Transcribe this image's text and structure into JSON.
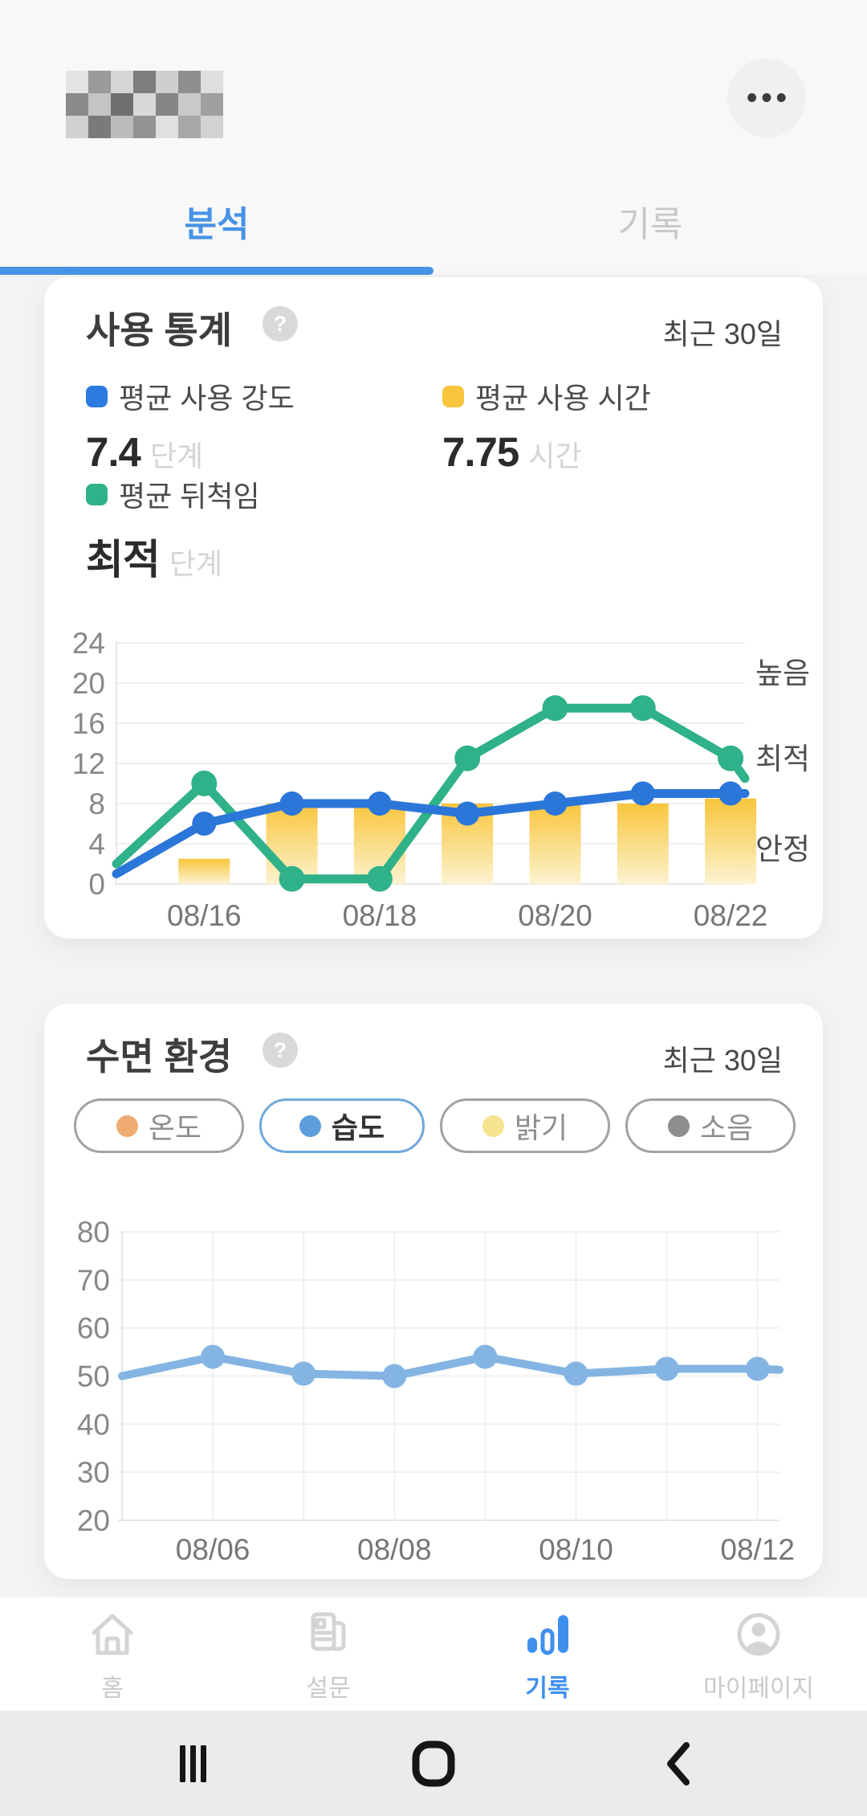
{
  "header": {
    "menu_icon_glyph": "•••"
  },
  "tabs": [
    {
      "label": "분석",
      "active": true
    },
    {
      "label": "기록",
      "active": false
    }
  ],
  "accent_color": "#4793e6",
  "cards": {
    "usage": {
      "title": "사용 통계",
      "help_icon_glyph": "?",
      "period": "최근 30일",
      "legend": [
        {
          "label": "평균 사용 강도",
          "value": "7.4",
          "unit": "단계",
          "color": "#2b7be0"
        },
        {
          "label": "평균 사용 시간",
          "value": "7.75",
          "unit": "시간",
          "color": "#f8c53c"
        },
        {
          "label": "평균 뒤척임",
          "value": "최적",
          "unit": "단계",
          "color": "#2fb189"
        }
      ]
    },
    "environment": {
      "title": "수면 환경",
      "help_icon_glyph": "?",
      "period": "최근 30일",
      "chips": [
        {
          "label": "온도",
          "dot_color": "#f0ac72",
          "selected": false
        },
        {
          "label": "습도",
          "dot_color": "#5c9edc",
          "selected": true
        },
        {
          "label": "밝기",
          "dot_color": "#f6e38f",
          "selected": false
        },
        {
          "label": "소음",
          "dot_color": "#8e8e90",
          "selected": false
        }
      ]
    }
  },
  "chart_data": [
    {
      "type": "bar",
      "title": "사용 통계 (최근 30일)",
      "n_slots": 8,
      "x_tick_labels": [
        {
          "index": 1,
          "label": "08/16"
        },
        {
          "index": 3,
          "label": "08/18"
        },
        {
          "index": 5,
          "label": "08/20"
        },
        {
          "index": 7,
          "label": "08/22"
        }
      ],
      "ylim": [
        0,
        24
      ],
      "yticks": [
        0,
        4,
        8,
        12,
        16,
        20,
        24
      ],
      "right_zone_labels": [
        {
          "label": "높음",
          "value": 21
        },
        {
          "label": "최적",
          "value": 12.5
        },
        {
          "label": "안정",
          "value": 3.5
        }
      ],
      "series": [
        {
          "name": "평균 사용 시간",
          "type": "bar",
          "color_top": "#f8c53c",
          "color_bottom": "#fdf3d0",
          "values": [
            null,
            2.5,
            8,
            8,
            8,
            8,
            8,
            8.5
          ]
        },
        {
          "name": "평균 뒤척임",
          "type": "line",
          "color": "#2fb189",
          "marker_r": 16,
          "values": [
            2,
            10,
            0.5,
            0.5,
            12.5,
            17.5,
            17.5,
            12.5
          ],
          "tail_value": 10.5
        },
        {
          "name": "평균 사용 강도",
          "type": "line",
          "color": "#2b76d9",
          "marker_r": 15,
          "values": [
            1,
            6,
            8,
            8,
            7,
            8,
            9,
            9
          ],
          "tail_value": 9
        }
      ],
      "grid": "horizontal"
    },
    {
      "type": "line",
      "title": "수면 환경 — 습도 (최근 30일)",
      "n_slots": 8,
      "x_tick_labels": [
        {
          "index": 1,
          "label": "08/06"
        },
        {
          "index": 3,
          "label": "08/08"
        },
        {
          "index": 5,
          "label": "08/10"
        },
        {
          "index": 7,
          "label": "08/12"
        }
      ],
      "ylim": [
        20,
        80
      ],
      "yticks": [
        20,
        30,
        40,
        50,
        60,
        70,
        80
      ],
      "series": [
        {
          "name": "습도",
          "type": "line",
          "color": "#84b5e2",
          "marker_r": 15,
          "values": [
            50,
            54,
            50.5,
            50,
            54,
            50.5,
            51.5,
            51.5
          ],
          "tail_value": 51.3
        }
      ],
      "grid": "horizontal+vertical"
    }
  ],
  "bottom_nav": [
    {
      "label": "홈",
      "icon": "home-icon",
      "active": false
    },
    {
      "label": "설문",
      "icon": "survey-icon",
      "active": false
    },
    {
      "label": "기록",
      "icon": "records-icon",
      "active": true
    },
    {
      "label": "마이페이지",
      "icon": "mypage-icon",
      "active": false
    }
  ],
  "system_bar": {
    "buttons": [
      "recents",
      "home",
      "back"
    ]
  }
}
